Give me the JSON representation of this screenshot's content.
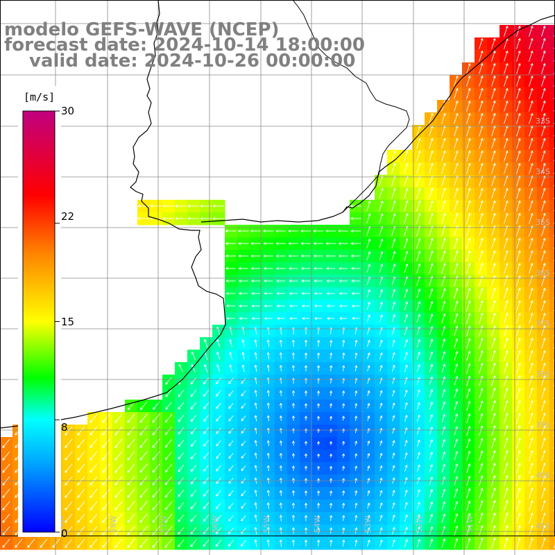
{
  "title": {
    "model": "modelo GEFS-WAVE (NCEP)",
    "forecast": "forecast date: 2024-10-14 18:00:00",
    "valid": "valid date: 2024-10-26 00:00:00"
  },
  "colorbar": {
    "unit": "[m/s]",
    "ticks": [
      {
        "label": "30",
        "value": 30
      },
      {
        "label": "22",
        "value": 22
      },
      {
        "label": "15",
        "value": 15
      },
      {
        "label": "8",
        "value": 8
      },
      {
        "label": "0",
        "value": 0
      }
    ],
    "colors": [
      "#0000ff",
      "#00a8ff",
      "#00ffff",
      "#00ff00",
      "#ffff00",
      "#ff8000",
      "#ff0000",
      "#c00080"
    ]
  },
  "axes": {
    "lat_labels": [
      "33S",
      "34S",
      "35S",
      "36S",
      "37S",
      "38S",
      "39S",
      "40S",
      "41S"
    ],
    "lon_labels": [
      "59W",
      "58W",
      "57W",
      "56W",
      "55W",
      "54W",
      "53W",
      "52W",
      "51W"
    ]
  },
  "legend_placement": "left",
  "grid": true
}
